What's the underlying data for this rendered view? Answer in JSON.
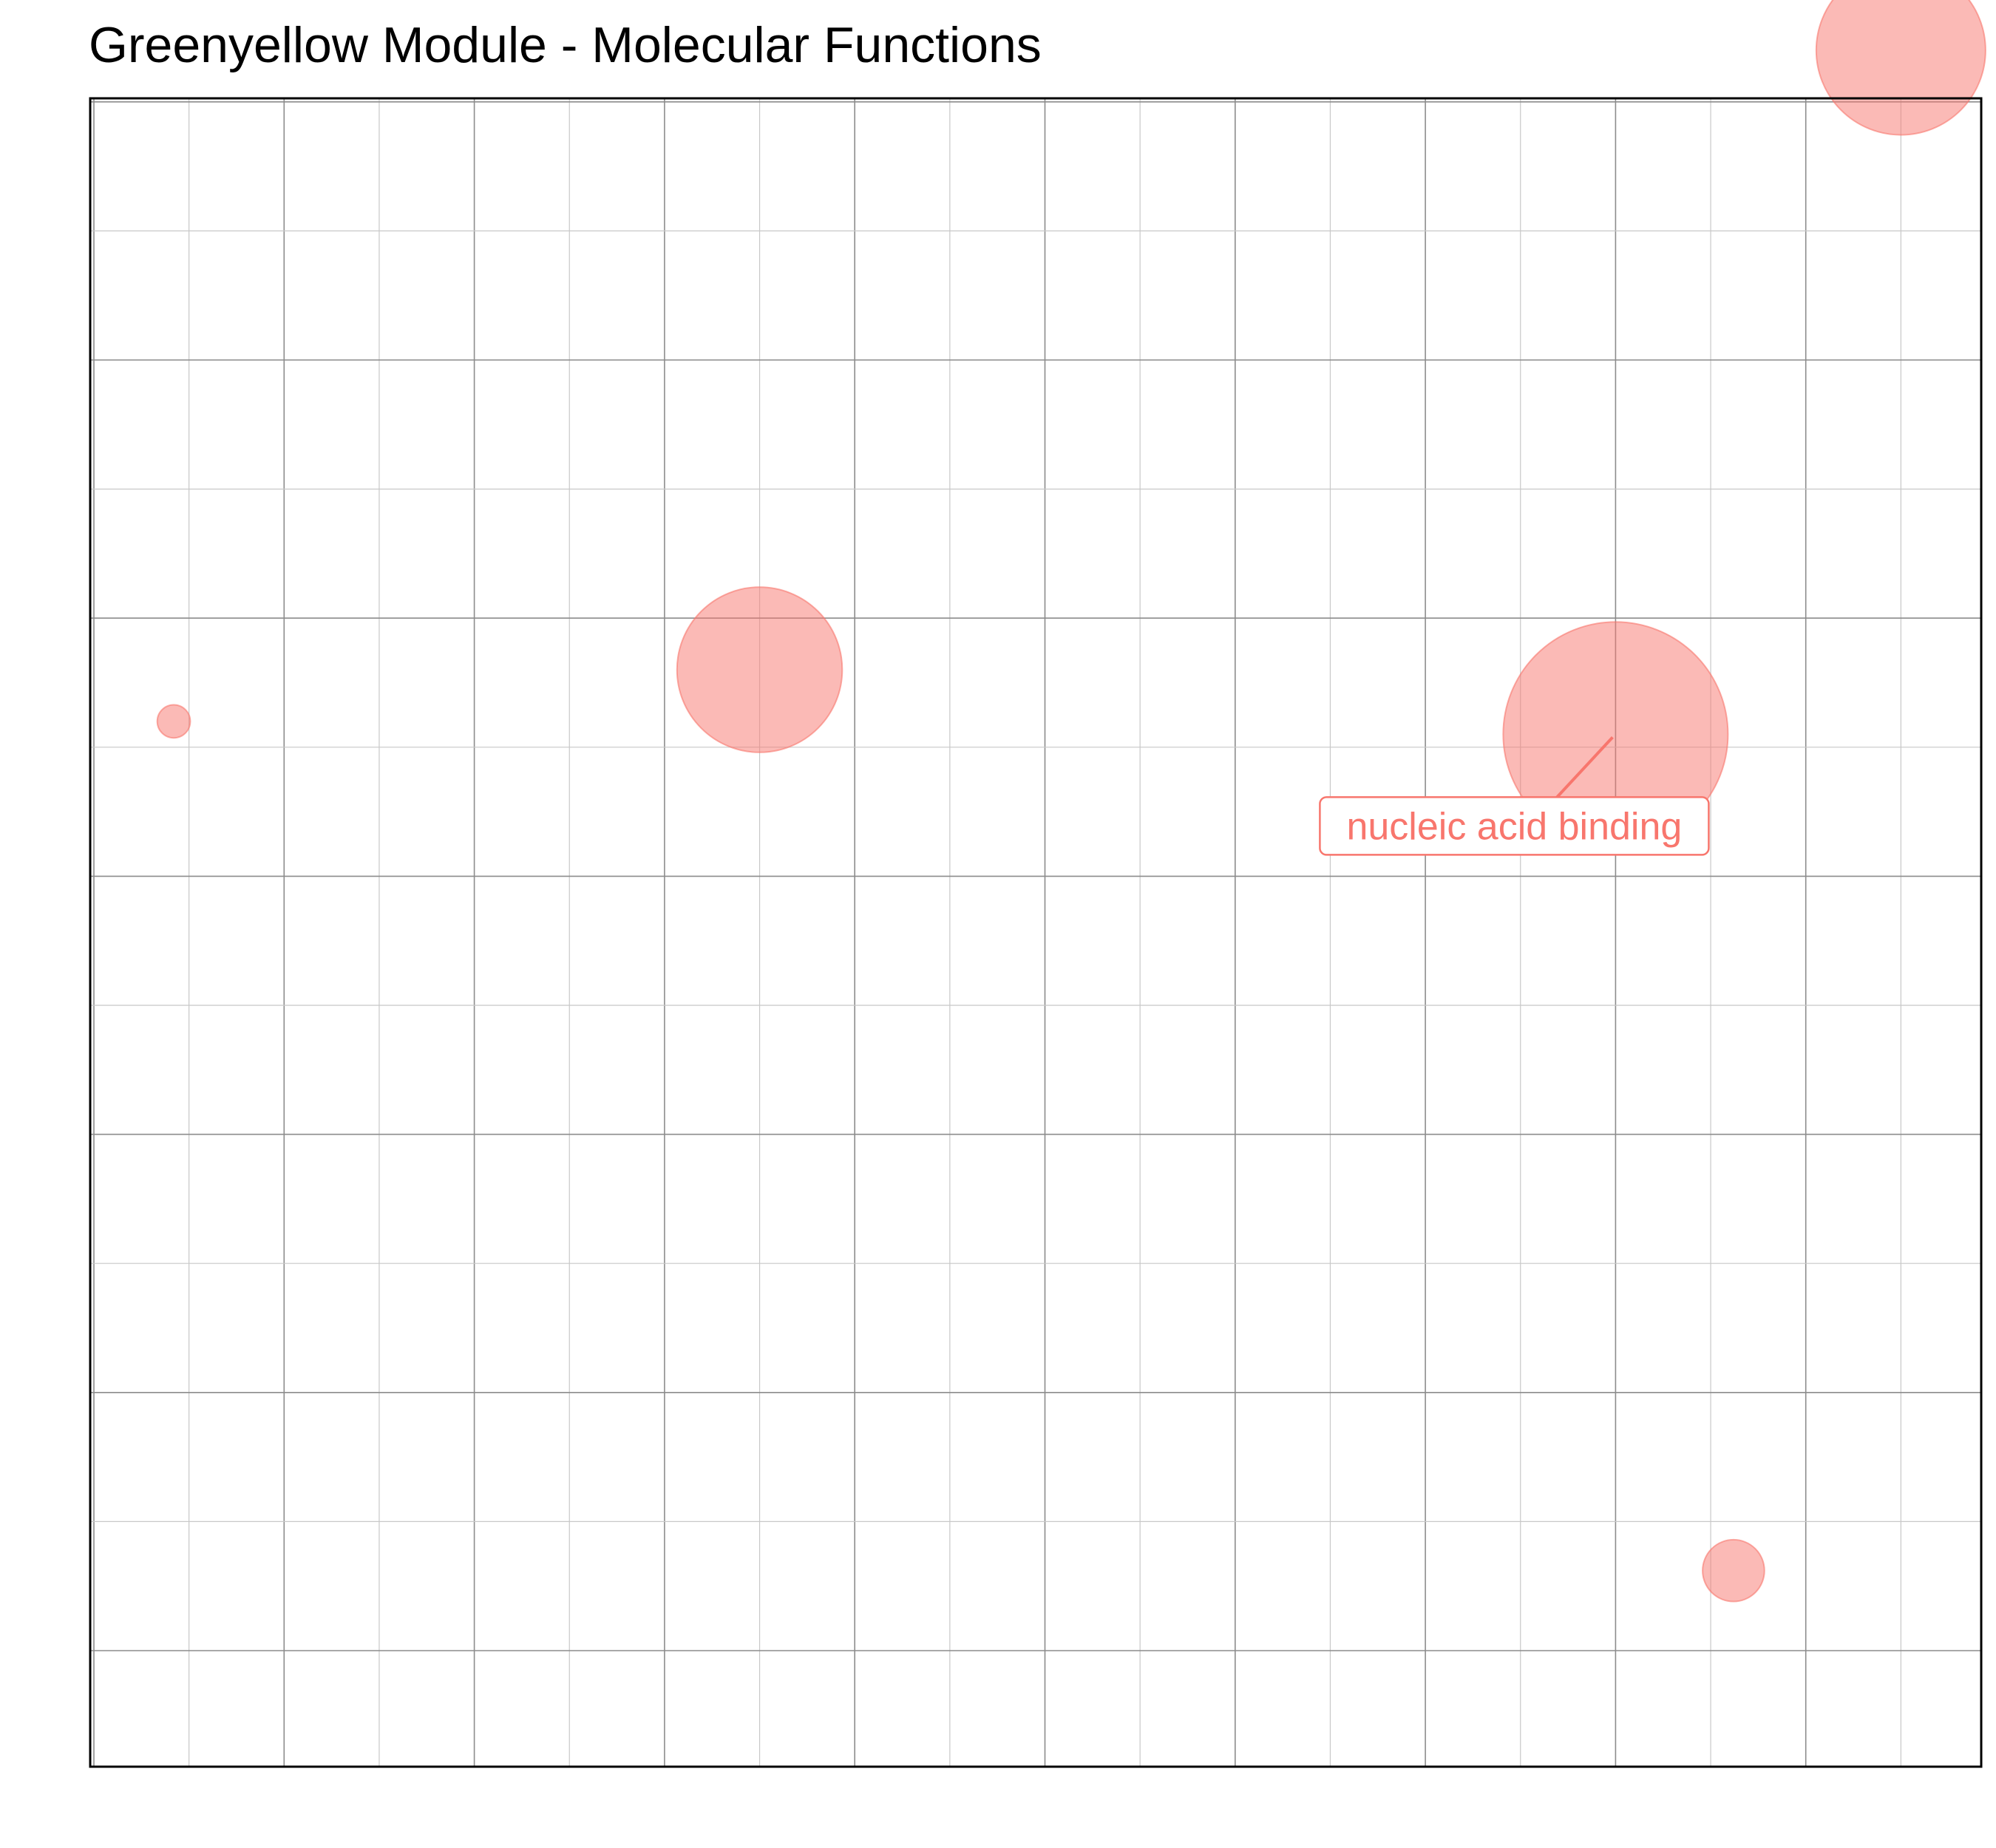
{
  "chart_data": {
    "type": "scatter",
    "title": "Greenyellow Module - Molecular Functions",
    "xlabel": "",
    "ylabel": "",
    "xlim": [
      0,
      10
    ],
    "ylim": [
      0,
      6.5
    ],
    "grid": true,
    "legend": "none",
    "colors": {
      "point_fill": "#F8766D",
      "label": "#F8766D",
      "grid_major": "#8c8c8c",
      "grid_minor": "#c8c8c8",
      "border": "#000000"
    },
    "points": [
      {
        "x": 0.42,
        "y": 3.6,
        "size": 0.04
      },
      {
        "x": 3.5,
        "y": 3.8,
        "size": 1.0
      },
      {
        "x": 8.0,
        "y": 3.55,
        "size": 1.85
      },
      {
        "x": 9.5,
        "y": 6.2,
        "size": 1.05
      },
      {
        "x": 8.62,
        "y": 0.31,
        "size": 0.14
      }
    ],
    "annotations": [
      {
        "text": "nucleic acid binding",
        "x": 8.0,
        "y": 3.55
      }
    ]
  }
}
